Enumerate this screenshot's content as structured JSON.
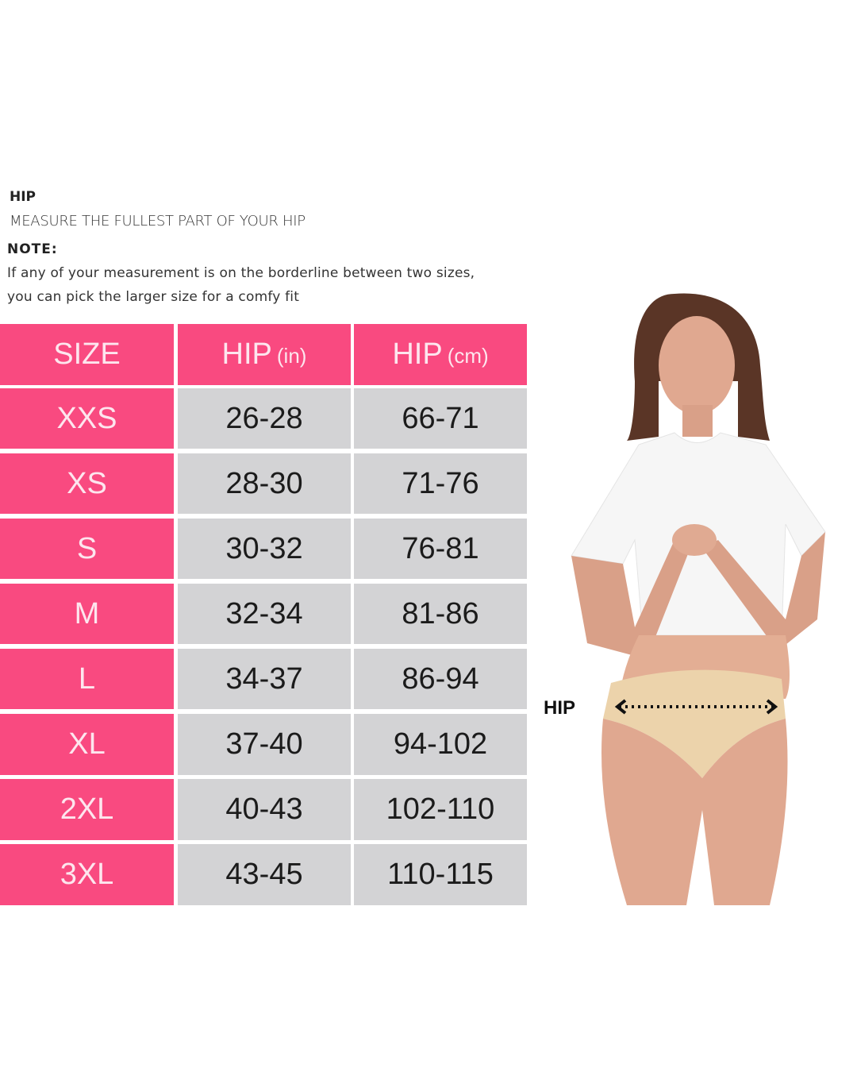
{
  "instructions": {
    "heading": "HIP",
    "text": "MEASURE  THE FULLEST PART OF YOUR HIP",
    "note_heading": "NOTE:",
    "note_line1": "If any of your measurement is on the borderline between two sizes,",
    "note_line2": "you can pick the larger size for a comfy fit"
  },
  "table": {
    "headers": [
      {
        "main": "SIZE",
        "unit": ""
      },
      {
        "main": "HIP",
        "unit": "(in)"
      },
      {
        "main": "HIP",
        "unit": "(cm)"
      }
    ],
    "rows": [
      [
        "XXS",
        "26-28",
        "66-71"
      ],
      [
        "XS",
        "28-30",
        "71-76"
      ],
      [
        "S",
        "30-32",
        "76-81"
      ],
      [
        "M",
        "32-34",
        "81-86"
      ],
      [
        "L",
        "34-37",
        "86-94"
      ],
      [
        "XL",
        "37-40",
        "94-102"
      ],
      [
        "2XL",
        "40-43",
        "102-110"
      ],
      [
        "3XL",
        "43-45",
        "110-115"
      ]
    ]
  },
  "illustration": {
    "hip_label": "HIP"
  },
  "colors": {
    "accent_pink": "#f94a80",
    "cell_gray": "#d3d3d5"
  }
}
